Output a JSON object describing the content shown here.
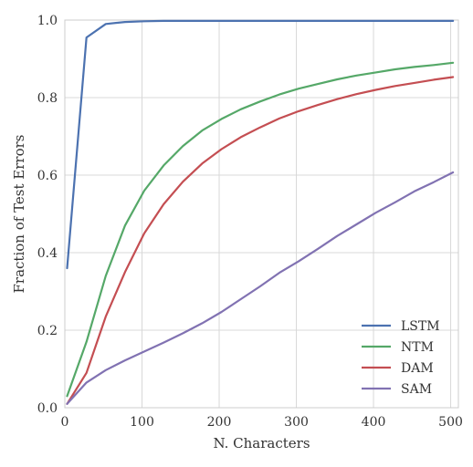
{
  "chart_data": {
    "type": "line",
    "title": "",
    "xlabel": "N. Characters",
    "ylabel": "Fraction of Test Errors",
    "xlim": [
      0,
      510
    ],
    "ylim": [
      0,
      1.0
    ],
    "xticks": [
      0,
      100,
      200,
      300,
      400,
      500
    ],
    "yticks": [
      0.0,
      0.2,
      0.4,
      0.6,
      0.8,
      1.0
    ],
    "xtick_labels": [
      "0",
      "100",
      "200",
      "300",
      "400",
      "500"
    ],
    "ytick_labels": [
      "0.0",
      "0.2",
      "0.4",
      "0.6",
      "0.8",
      "1.0"
    ],
    "grid": true,
    "legend_position": "lower-right",
    "series": [
      {
        "name": "LSTM",
        "color": "#4c72b0",
        "x": [
          3,
          28,
          53,
          78,
          103,
          128,
          153,
          178,
          203,
          228,
          253,
          278,
          303,
          328,
          353,
          378,
          403,
          428,
          453,
          478,
          503
        ],
        "y": [
          0.36,
          0.955,
          0.99,
          0.995,
          0.997,
          0.998,
          0.998,
          0.998,
          0.998,
          0.998,
          0.998,
          0.998,
          0.998,
          0.998,
          0.998,
          0.998,
          0.998,
          0.998,
          0.998,
          0.998,
          0.998
        ]
      },
      {
        "name": "NTM",
        "color": "#55a868",
        "x": [
          3,
          28,
          53,
          78,
          103,
          128,
          153,
          178,
          203,
          228,
          253,
          278,
          303,
          328,
          353,
          378,
          403,
          428,
          453,
          478,
          503
        ],
        "y": [
          0.03,
          0.17,
          0.34,
          0.47,
          0.56,
          0.625,
          0.675,
          0.715,
          0.745,
          0.77,
          0.79,
          0.808,
          0.823,
          0.835,
          0.847,
          0.857,
          0.865,
          0.873,
          0.879,
          0.884,
          0.89
        ]
      },
      {
        "name": "DAM",
        "color": "#c44e52",
        "x": [
          3,
          28,
          53,
          78,
          103,
          128,
          153,
          178,
          203,
          228,
          253,
          278,
          303,
          328,
          353,
          378,
          403,
          428,
          453,
          478,
          503
        ],
        "y": [
          0.01,
          0.09,
          0.235,
          0.35,
          0.45,
          0.525,
          0.583,
          0.63,
          0.667,
          0.698,
          0.723,
          0.746,
          0.765,
          0.781,
          0.796,
          0.809,
          0.82,
          0.83,
          0.838,
          0.846,
          0.853
        ]
      },
      {
        "name": "SAM",
        "color": "#8172b2",
        "x": [
          3,
          28,
          53,
          78,
          103,
          128,
          153,
          178,
          203,
          228,
          253,
          278,
          303,
          328,
          353,
          378,
          403,
          428,
          453,
          478,
          503
        ],
        "y": [
          0.01,
          0.065,
          0.097,
          0.122,
          0.145,
          0.168,
          0.192,
          0.218,
          0.247,
          0.28,
          0.313,
          0.348,
          0.378,
          0.41,
          0.443,
          0.473,
          0.503,
          0.53,
          0.558,
          0.582,
          0.607
        ]
      }
    ]
  }
}
